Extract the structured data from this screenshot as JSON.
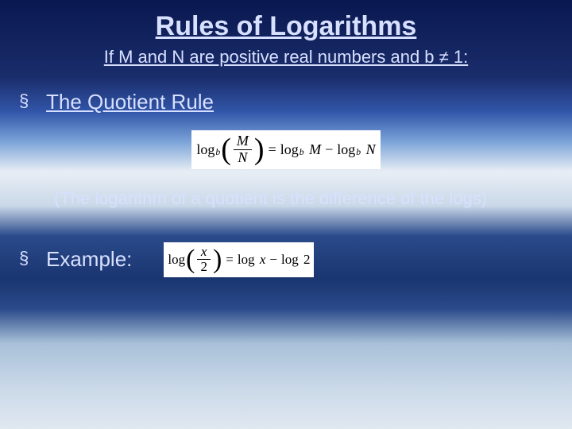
{
  "title": "Rules of Logarithms",
  "subtitle": "If M and N are positive real numbers and b ≠ 1:",
  "section": {
    "bullet": "§",
    "heading": "The Quotient Rule"
  },
  "formula1": {
    "log": "log",
    "b": "b",
    "M": "M",
    "N": "N",
    "eq": "=",
    "minus": "−"
  },
  "note": "(The logarithm of a quotient is the difference of the logs)",
  "example": {
    "bullet": "§",
    "label": "Example:"
  },
  "formula2": {
    "log": "log",
    "x": "x",
    "two": "2",
    "eq": "=",
    "minus": "−"
  },
  "colors": {
    "text": "#d8e0ff",
    "formula_bg": "#ffffff",
    "formula_fg": "#000000"
  }
}
